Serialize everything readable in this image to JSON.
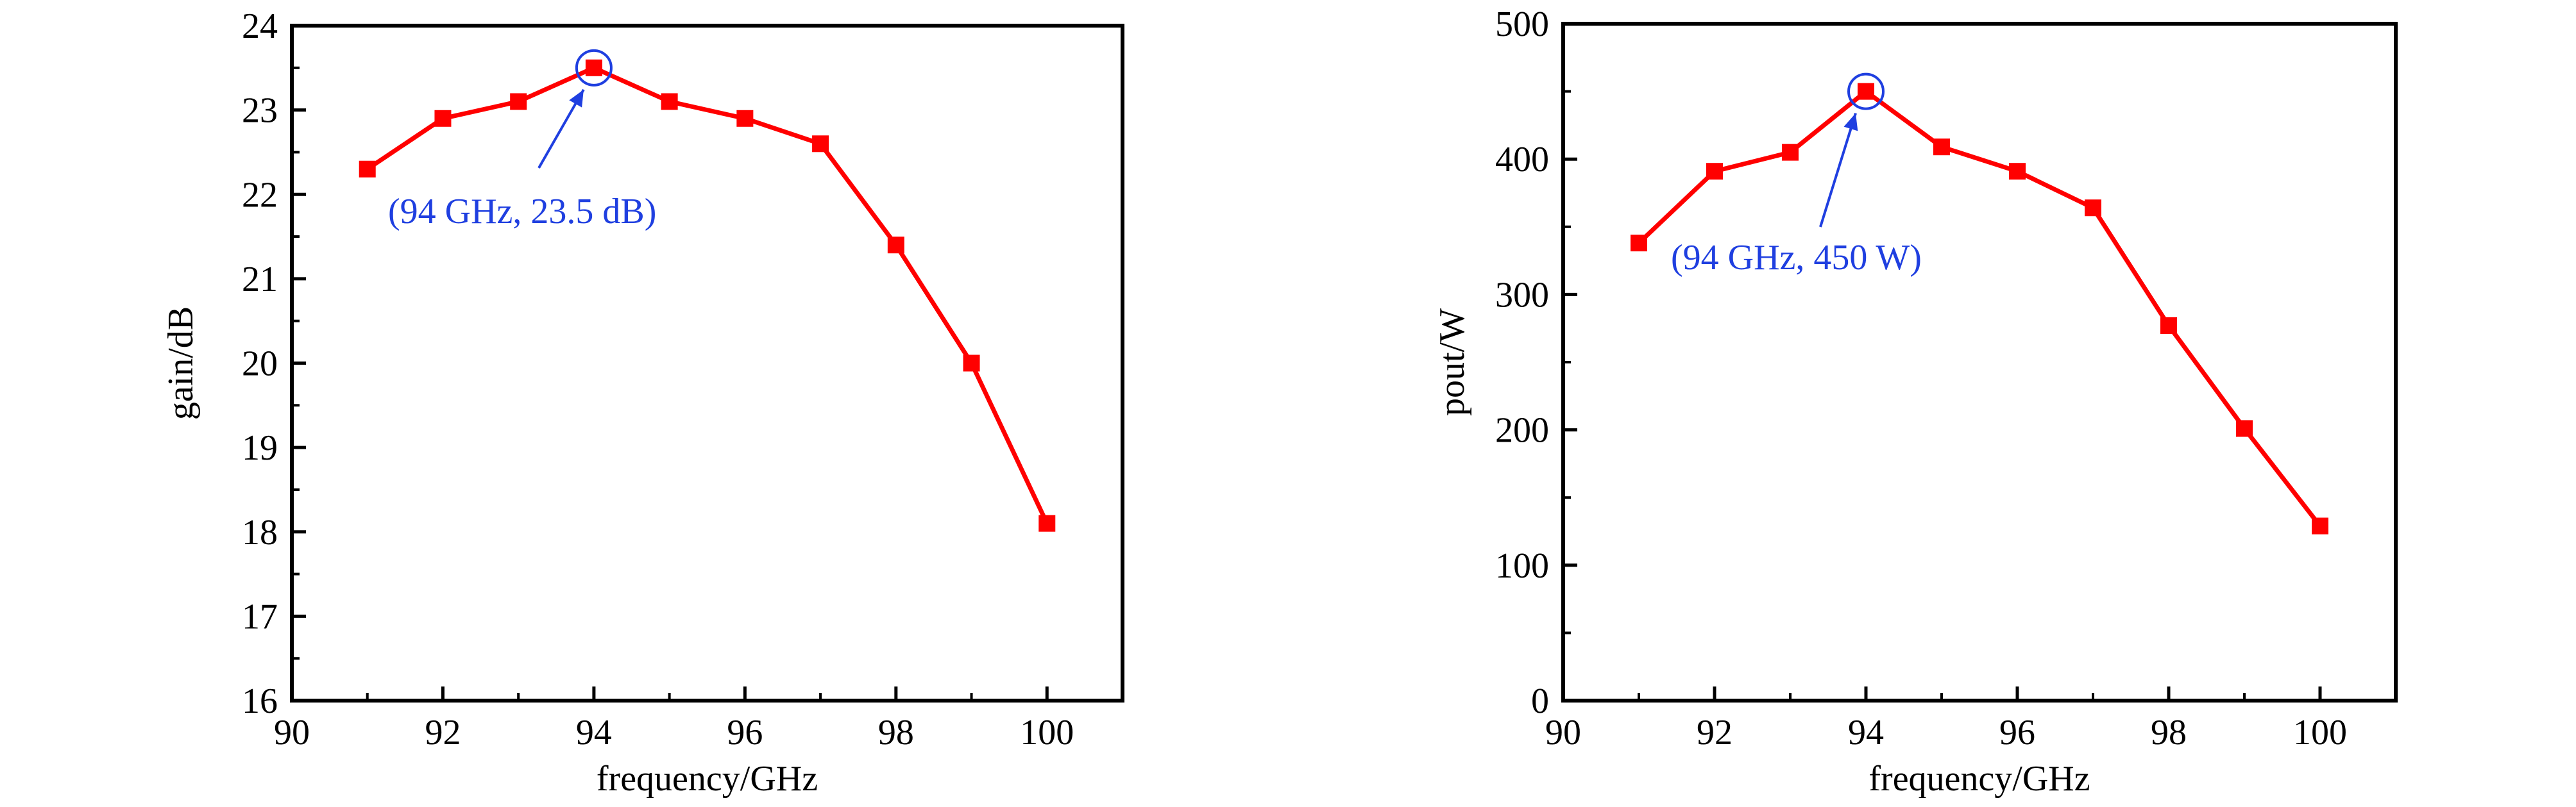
{
  "colors": {
    "series": "#ff0000",
    "annotation": "#1f3fe0",
    "axis": "#000000"
  },
  "chart_data": [
    {
      "type": "line",
      "title": "",
      "xlabel": "frequency/GHz",
      "ylabel": "gain/dB",
      "xlim": [
        90,
        101
      ],
      "ylim": [
        16,
        24
      ],
      "xticks": [
        90,
        92,
        94,
        96,
        98,
        100
      ],
      "xtick_labels": [
        "90",
        "92",
        "94",
        "96",
        "98",
        "100"
      ],
      "yticks": [
        16,
        17,
        18,
        19,
        20,
        21,
        22,
        23,
        24
      ],
      "ytick_labels": [
        "16",
        "17",
        "18",
        "19",
        "20",
        "21",
        "22",
        "23",
        "24"
      ],
      "x": [
        91,
        92,
        93,
        94,
        95,
        96,
        97,
        98,
        99,
        100
      ],
      "series": [
        {
          "values": [
            22.3,
            22.9,
            23.1,
            23.5,
            23.1,
            22.9,
            22.6,
            21.4,
            20.0,
            18.1
          ],
          "marker": "square"
        }
      ],
      "grid": false,
      "annotation": {
        "text": "(94 GHz, 23.5 dB)",
        "x": 94,
        "y": 23.5
      }
    },
    {
      "type": "line",
      "title": "",
      "xlabel": "frequency/GHz",
      "ylabel": "pout/W",
      "xlim": [
        90,
        101
      ],
      "ylim": [
        0,
        500
      ],
      "xticks": [
        90,
        92,
        94,
        96,
        98,
        100
      ],
      "xtick_labels": [
        "90",
        "92",
        "94",
        "96",
        "98",
        "100"
      ],
      "yticks": [
        0,
        100,
        200,
        300,
        400,
        500
      ],
      "ytick_labels": [
        "0",
        "100",
        "200",
        "300",
        "400",
        "500"
      ],
      "x": [
        91,
        92,
        93,
        94,
        95,
        96,
        97,
        98,
        99,
        100
      ],
      "series": [
        {
          "values": [
            338,
            391,
            405,
            450,
            409,
            391,
            364,
            277,
            201,
            129
          ],
          "marker": "square"
        }
      ],
      "grid": false,
      "annotation": {
        "text": "(94 GHz, 450 W)",
        "x": 94,
        "y": 450
      }
    }
  ]
}
